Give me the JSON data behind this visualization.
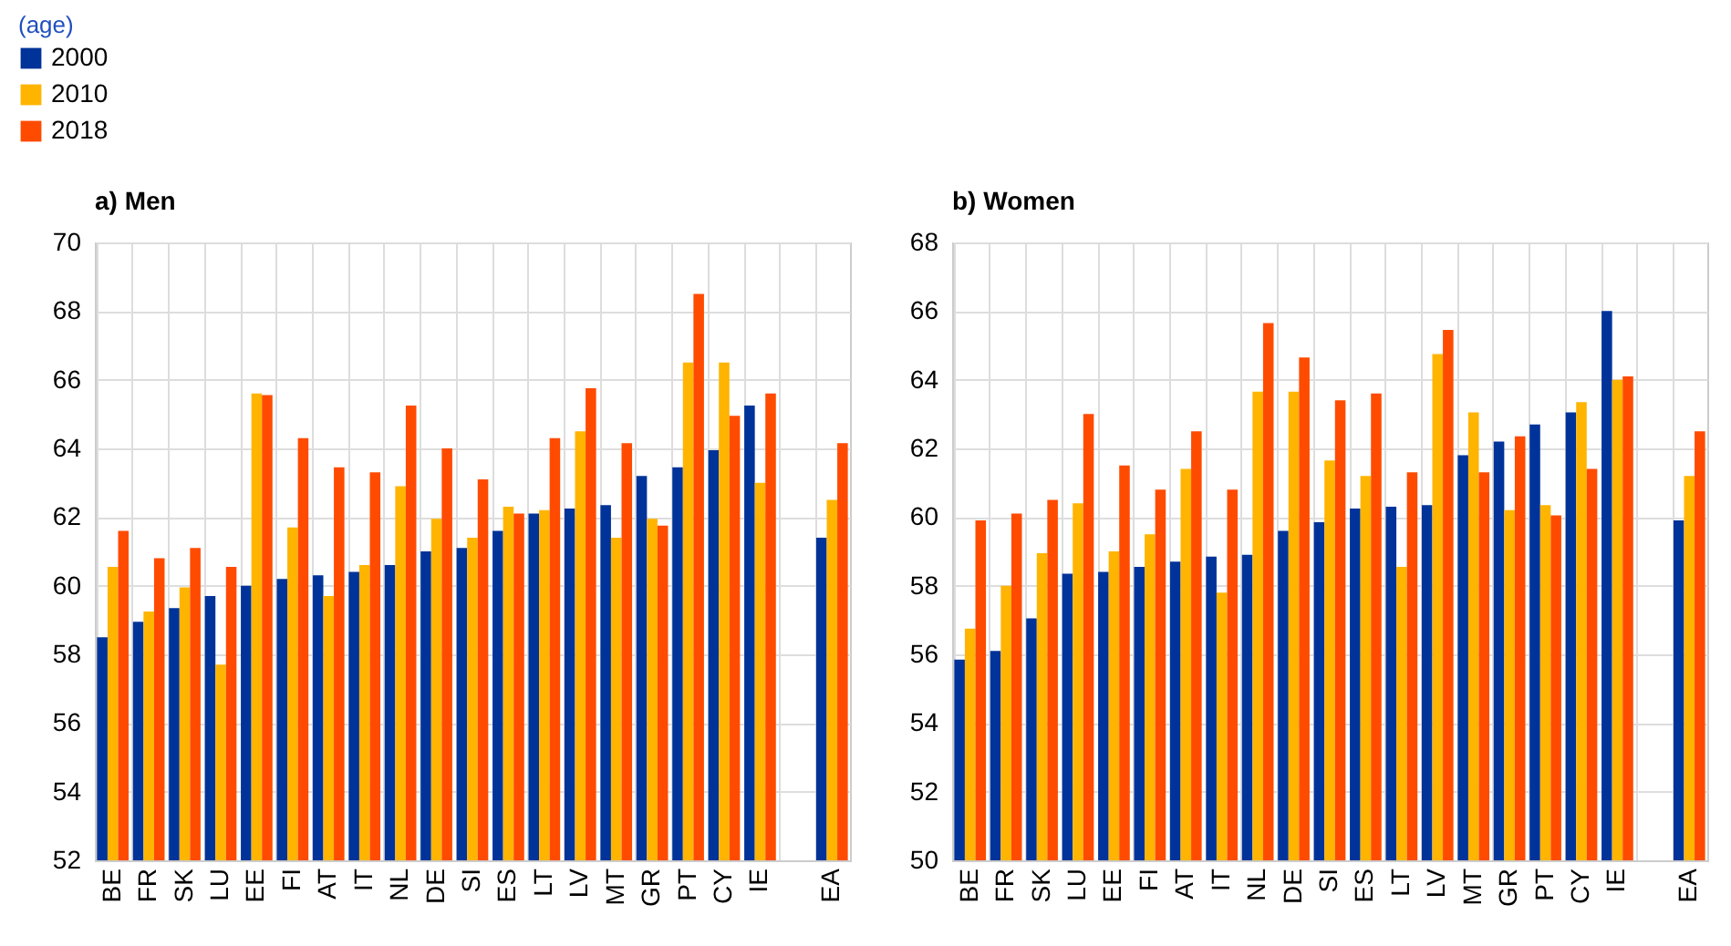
{
  "chart_data": [
    {
      "type": "bar",
      "title": "a) Men",
      "annotations": [
        "(age)"
      ],
      "categories": [
        "BE",
        "FR",
        "SK",
        "LU",
        "EE",
        "FI",
        "AT",
        "IT",
        "NL",
        "DE",
        "SI",
        "ES",
        "LT",
        "LV",
        "MT",
        "GR",
        "PT",
        "CY",
        "IE",
        null,
        "EA"
      ],
      "series": [
        {
          "name": "2000",
          "color": "#003399",
          "values": [
            58.5,
            58.95,
            59.35,
            59.7,
            60.0,
            60.2,
            60.3,
            60.4,
            60.6,
            61.0,
            61.1,
            61.6,
            62.1,
            62.25,
            62.35,
            63.2,
            63.45,
            63.95,
            65.25,
            null,
            61.4
          ]
        },
        {
          "name": "2010",
          "color": "#ffb400",
          "values": [
            60.55,
            59.25,
            59.95,
            57.7,
            65.6,
            61.7,
            59.7,
            60.6,
            62.9,
            61.95,
            61.4,
            62.3,
            62.2,
            64.5,
            61.4,
            61.95,
            66.5,
            66.5,
            63.0,
            null,
            62.5
          ]
        },
        {
          "name": "2018",
          "color": "#ff4b00",
          "values": [
            61.6,
            60.8,
            61.1,
            60.55,
            65.55,
            64.3,
            63.45,
            63.3,
            65.25,
            64.0,
            63.1,
            62.1,
            64.3,
            65.75,
            64.15,
            61.75,
            68.5,
            64.95,
            65.6,
            null,
            64.15
          ]
        }
      ],
      "ylim": [
        52,
        70
      ],
      "yticks": [
        52,
        54,
        56,
        58,
        60,
        62,
        64,
        66,
        68,
        70
      ],
      "grid": true,
      "legend": "top left"
    },
    {
      "type": "bar",
      "title": "b) Women",
      "categories": [
        "BE",
        "FR",
        "SK",
        "LU",
        "EE",
        "FI",
        "AT",
        "IT",
        "NL",
        "DE",
        "SI",
        "ES",
        "LT",
        "LV",
        "MT",
        "GR",
        "PT",
        "CY",
        "IE",
        null,
        "EA"
      ],
      "series": [
        {
          "name": "2000",
          "color": "#003399",
          "values": [
            55.85,
            56.1,
            57.05,
            58.35,
            58.4,
            58.55,
            58.7,
            58.85,
            58.9,
            59.6,
            59.85,
            60.25,
            60.3,
            60.35,
            61.8,
            62.2,
            62.7,
            63.05,
            66.0,
            null,
            59.9
          ]
        },
        {
          "name": "2010",
          "color": "#ffb400",
          "values": [
            56.75,
            58.0,
            58.95,
            60.4,
            59.0,
            59.5,
            61.4,
            57.8,
            63.65,
            63.65,
            61.65,
            61.2,
            58.55,
            64.75,
            63.05,
            60.2,
            60.35,
            63.35,
            64.0,
            null,
            61.2
          ]
        },
        {
          "name": "2018",
          "color": "#ff4b00",
          "values": [
            59.9,
            60.1,
            60.5,
            63.0,
            61.5,
            60.8,
            62.5,
            60.8,
            65.65,
            64.65,
            63.4,
            63.6,
            61.3,
            65.45,
            61.3,
            62.35,
            60.05,
            61.4,
            64.1,
            null,
            62.5
          ]
        }
      ],
      "ylim": [
        50,
        68
      ],
      "yticks": [
        50,
        52,
        54,
        56,
        58,
        60,
        62,
        64,
        66,
        68
      ],
      "grid": true,
      "legend": false
    }
  ]
}
